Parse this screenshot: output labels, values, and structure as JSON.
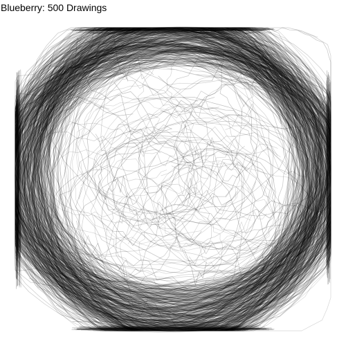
{
  "title": "Blueberry: 500 Drawings",
  "drawing_count": 500,
  "stroke_color": "#000000",
  "background_color": "#ffffff"
}
